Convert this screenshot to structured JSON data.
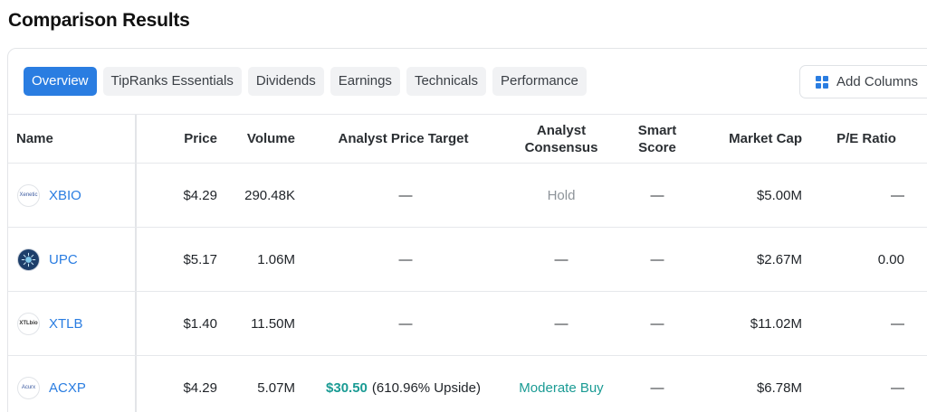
{
  "page": {
    "title": "Comparison Results"
  },
  "tabs": [
    {
      "label": "Overview",
      "active": true
    },
    {
      "label": "TipRanks Essentials",
      "active": false
    },
    {
      "label": "Dividends",
      "active": false
    },
    {
      "label": "Earnings",
      "active": false
    },
    {
      "label": "Technicals",
      "active": false
    },
    {
      "label": "Performance",
      "active": false
    }
  ],
  "toolbar": {
    "add_columns_label": "Add Columns",
    "add_columns_icon": "grid-icon"
  },
  "colors": {
    "accent": "#2a7de1",
    "positive": "#1a9b94",
    "muted": "#8d9399"
  },
  "table": {
    "headers": {
      "name": "Name",
      "price": "Price",
      "volume": "Volume",
      "analyst_price_target": "Analyst Price Target",
      "analyst_consensus": "Analyst Consensus",
      "smart_score": "Smart Score",
      "market_cap": "Market Cap",
      "pe_ratio": "P/E Ratio"
    },
    "rows": [
      {
        "logo_text": "Xenetic",
        "ticker": "XBIO",
        "price": "$4.29",
        "volume": "290.48K",
        "target_price": "",
        "target_upside": "—",
        "consensus": "Hold",
        "smart_score": "—",
        "market_cap": "$5.00M",
        "pe_ratio": "—"
      },
      {
        "logo_text": "",
        "ticker": "UPC",
        "price": "$5.17",
        "volume": "1.06M",
        "target_price": "",
        "target_upside": "—",
        "consensus": "—",
        "smart_score": "—",
        "market_cap": "$2.67M",
        "pe_ratio": "0.00"
      },
      {
        "logo_text": "XTLbio",
        "ticker": "XTLB",
        "price": "$1.40",
        "volume": "11.50M",
        "target_price": "",
        "target_upside": "—",
        "consensus": "—",
        "smart_score": "—",
        "market_cap": "$11.02M",
        "pe_ratio": "—"
      },
      {
        "logo_text": "Acurx",
        "ticker": "ACXP",
        "price": "$4.29",
        "volume": "5.07M",
        "target_price": "$30.50",
        "target_upside": "(610.96% Upside)",
        "consensus": "Moderate Buy",
        "smart_score": "—",
        "market_cap": "$6.78M",
        "pe_ratio": "—"
      }
    ]
  }
}
